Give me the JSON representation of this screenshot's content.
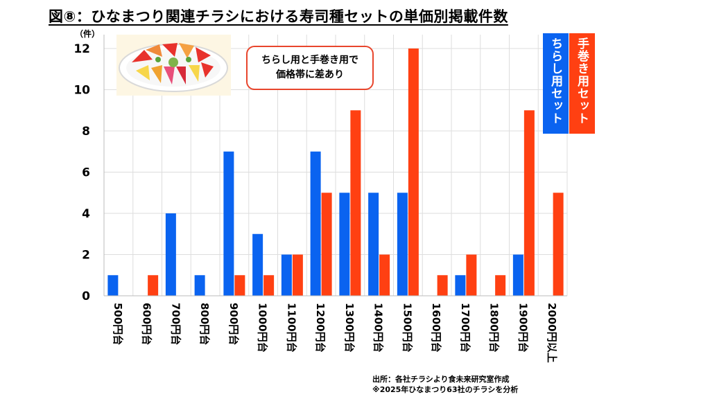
{
  "title": "図⑧：ひなまつり関連チラシにおける寿司種セットの単価別掲載件数",
  "unit_label": "（件）",
  "callout": {
    "line1": "ちらし用と手巻き用で",
    "line2": "価格帯に差あり"
  },
  "source": {
    "line1": "出所：各社チラシより食未来研究室作成",
    "line2": "※2025年ひなまつり63社のチラシを分析"
  },
  "colors": {
    "chirashi": "#0a63f0",
    "temaki": "#ff4012",
    "grid": "#dddddd",
    "accent": "#e8452c"
  },
  "chart_data": {
    "type": "bar",
    "title": "図⑧：ひなまつり関連チラシにおける寿司種セットの単価別掲載件数",
    "ylabel": "（件）",
    "xlabel": "",
    "ylim": [
      0,
      12
    ],
    "yticks": [
      0,
      2,
      4,
      6,
      8,
      10,
      12
    ],
    "grid": true,
    "legend_position": "top-right",
    "categories": [
      "500円台",
      "600円台",
      "700円台",
      "800円台",
      "900円台",
      "1000円台",
      "1100円台",
      "1200円台",
      "1300円台",
      "1400円台",
      "1500円台",
      "1600円台",
      "1700円台",
      "1800円台",
      "1900円台",
      "2000円以上"
    ],
    "series": [
      {
        "name": "ちらし用セット",
        "color": "#0a63f0",
        "values": [
          1,
          0,
          4,
          1,
          7,
          3,
          2,
          7,
          5,
          5,
          5,
          0,
          1,
          0,
          2,
          0
        ]
      },
      {
        "name": "手巻き用セット",
        "color": "#ff4012",
        "values": [
          0,
          1,
          0,
          0,
          1,
          1,
          2,
          5,
          9,
          2,
          12,
          1,
          2,
          1,
          9,
          5
        ]
      }
    ]
  }
}
